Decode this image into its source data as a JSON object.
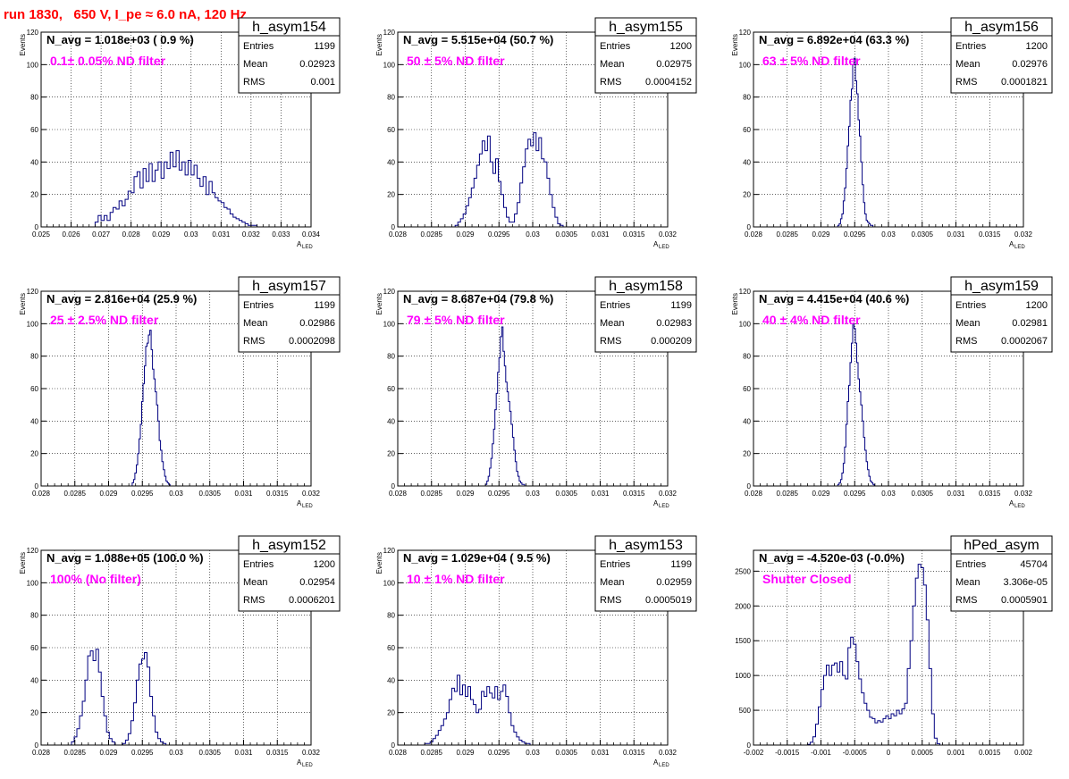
{
  "title": "run 1830,   650 V, I_pe ≈ 6.0 nA, 120 Hz",
  "colors": {
    "title": "#ff0000",
    "annotation": "#ff00ff",
    "histogram": "#000080",
    "grid": "#000000"
  },
  "chart_data": [
    {
      "type": "histogram",
      "name": "h_asym154",
      "stats": [
        {
          "label": "Entries",
          "value": "1199"
        },
        {
          "label": "Mean",
          "value": "0.02923"
        },
        {
          "label": "RMS",
          "value": "0.001"
        }
      ],
      "navg": "N_avg = 1.018e+03 ( 0.9 %)",
      "annotation": "0.1± 0.05% ND filter",
      "ylabel": "Events",
      "xlabel": "A",
      "xlabel_sub": "LED",
      "xlim": [
        0.025,
        0.034
      ],
      "ylim": [
        0,
        120
      ],
      "xticks": [
        "0.025",
        "0.026",
        "0.027",
        "0.028",
        "0.029",
        "0.03",
        "0.031",
        "0.032",
        "0.033",
        "0.034"
      ],
      "yticks": [
        "0",
        "20",
        "40",
        "60",
        "80",
        "100",
        "120"
      ],
      "bin_start": 0.0268,
      "bin_width": 0.0001,
      "counts": [
        3,
        7,
        4,
        7,
        4,
        9,
        12,
        11,
        16,
        13,
        17,
        22,
        21,
        31,
        34,
        24,
        36,
        28,
        39,
        28,
        35,
        40,
        30,
        40,
        36,
        46,
        37,
        47,
        35,
        40,
        32,
        41,
        32,
        38,
        30,
        25,
        31,
        20,
        28,
        21,
        18,
        16,
        15,
        12,
        11,
        8,
        6,
        5,
        4,
        3,
        2,
        1,
        1,
        1,
        0,
        0,
        0,
        0,
        0,
        0
      ]
    },
    {
      "type": "histogram",
      "name": "h_asym155",
      "stats": [
        {
          "label": "Entries",
          "value": "1200"
        },
        {
          "label": "Mean",
          "value": "0.02975"
        },
        {
          "label": "RMS",
          "value": "0.0004152"
        }
      ],
      "navg": "N_avg = 5.515e+04 (50.7 %)",
      "annotation": "50 ± 5% ND filter",
      "ylabel": "Events",
      "xlabel": "A",
      "xlabel_sub": "LED",
      "xlim": [
        0.028,
        0.032
      ],
      "ylim": [
        0,
        120
      ],
      "xticks": [
        "0.028",
        "0.0285",
        "0.029",
        "0.0295",
        "0.03",
        "0.0305",
        "0.031",
        "0.0315",
        "0.032"
      ],
      "yticks": [
        "0",
        "20",
        "40",
        "60",
        "80",
        "100",
        "120"
      ],
      "bin_start": 0.02885,
      "bin_width": 4e-05,
      "counts": [
        1,
        3,
        5,
        8,
        13,
        18,
        24,
        30,
        38,
        45,
        53,
        47,
        56,
        40,
        33,
        42,
        28,
        20,
        12,
        6,
        3,
        3,
        8,
        15,
        27,
        37,
        48,
        54,
        50,
        58,
        47,
        55,
        42,
        40,
        30,
        20,
        12,
        6,
        2,
        1
      ]
    },
    {
      "type": "histogram",
      "name": "h_asym156",
      "stats": [
        {
          "label": "Entries",
          "value": "1200"
        },
        {
          "label": "Mean",
          "value": "0.02976"
        },
        {
          "label": "RMS",
          "value": "0.0001821"
        }
      ],
      "navg": "N_avg = 6.892e+04 (63.3 %)",
      "annotation": "63 ± 5% ND filter",
      "ylabel": "Events",
      "xlabel": "A",
      "xlabel_sub": "LED",
      "xlim": [
        0.028,
        0.032
      ],
      "ylim": [
        0,
        120
      ],
      "xticks": [
        "0.028",
        "0.0285",
        "0.029",
        "0.0295",
        "0.03",
        "0.0305",
        "0.031",
        "0.0315",
        "0.032"
      ],
      "yticks": [
        "0",
        "20",
        "40",
        "60",
        "80",
        "100",
        "120"
      ],
      "bin_start": 0.02925,
      "bin_width": 2e-05,
      "counts": [
        1,
        2,
        5,
        8,
        16,
        24,
        36,
        50,
        62,
        78,
        85,
        100,
        104,
        90,
        82,
        66,
        56,
        40,
        26,
        15,
        8,
        4,
        3,
        2,
        1,
        1,
        0,
        0,
        0,
        0
      ]
    },
    {
      "type": "histogram",
      "name": "h_asym157",
      "stats": [
        {
          "label": "Entries",
          "value": "1199"
        },
        {
          "label": "Mean",
          "value": "0.02986"
        },
        {
          "label": "RMS",
          "value": "0.0002098"
        }
      ],
      "navg": "N_avg = 2.816e+04 (25.9 %)",
      "annotation": "25 ± 2.5% ND filter",
      "ylabel": "Events",
      "xlabel": "A",
      "xlabel_sub": "LED",
      "xlim": [
        0.028,
        0.032
      ],
      "ylim": [
        0,
        120
      ],
      "xticks": [
        "0.028",
        "0.0285",
        "0.029",
        "0.0295",
        "0.03",
        "0.0305",
        "0.031",
        "0.0315",
        "0.032"
      ],
      "yticks": [
        "0",
        "20",
        "40",
        "60",
        "80",
        "100",
        "120"
      ],
      "bin_start": 0.02935,
      "bin_width": 2e-05,
      "counts": [
        2,
        4,
        8,
        13,
        20,
        29,
        38,
        52,
        63,
        74,
        86,
        88,
        93,
        96,
        84,
        72,
        66,
        58,
        50,
        40,
        28,
        22,
        15,
        10,
        6,
        3,
        2,
        1,
        0,
        0
      ]
    },
    {
      "type": "histogram",
      "name": "h_asym158",
      "stats": [
        {
          "label": "Entries",
          "value": "1199"
        },
        {
          "label": "Mean",
          "value": "0.02983"
        },
        {
          "label": "RMS",
          "value": "0.000209"
        }
      ],
      "navg": "N_avg = 8.687e+04 (79.8 %)",
      "annotation": "79 ± 5% ND filter",
      "ylabel": "Events",
      "xlabel": "A",
      "xlabel_sub": "LED",
      "xlim": [
        0.028,
        0.032
      ],
      "ylim": [
        0,
        120
      ],
      "xticks": [
        "0.028",
        "0.0285",
        "0.029",
        "0.0295",
        "0.03",
        "0.0305",
        "0.031",
        "0.0315",
        "0.032"
      ],
      "yticks": [
        "0",
        "20",
        "40",
        "60",
        "80",
        "100",
        "120"
      ],
      "bin_start": 0.0293,
      "bin_width": 2e-05,
      "counts": [
        1,
        3,
        6,
        11,
        17,
        26,
        35,
        47,
        57,
        70,
        79,
        92,
        98,
        83,
        74,
        64,
        58,
        52,
        46,
        38,
        30,
        22,
        15,
        9,
        6,
        3,
        2,
        1,
        1,
        0
      ]
    },
    {
      "type": "histogram",
      "name": "h_asym159",
      "stats": [
        {
          "label": "Entries",
          "value": "1200"
        },
        {
          "label": "Mean",
          "value": "0.02981"
        },
        {
          "label": "RMS",
          "value": "0.0002067"
        }
      ],
      "navg": "N_avg = 4.415e+04 (40.6 %)",
      "annotation": "40 ± 4% ND filter",
      "ylabel": "Events",
      "xlabel": "A",
      "xlabel_sub": "LED",
      "xlim": [
        0.028,
        0.032
      ],
      "ylim": [
        0,
        120
      ],
      "xticks": [
        "0.028",
        "0.0285",
        "0.029",
        "0.0295",
        "0.03",
        "0.0305",
        "0.031",
        "0.0315",
        "0.032"
      ],
      "yticks": [
        "0",
        "20",
        "40",
        "60",
        "80",
        "100",
        "120"
      ],
      "bin_start": 0.02925,
      "bin_width": 2e-05,
      "counts": [
        1,
        2,
        4,
        8,
        14,
        24,
        38,
        52,
        62,
        76,
        88,
        100,
        97,
        88,
        76,
        66,
        58,
        50,
        40,
        30,
        22,
        15,
        10,
        6,
        3,
        2,
        1,
        0,
        0,
        0
      ]
    },
    {
      "type": "histogram",
      "name": "h_asym152",
      "stats": [
        {
          "label": "Entries",
          "value": "1200"
        },
        {
          "label": "Mean",
          "value": "0.02954"
        },
        {
          "label": "RMS",
          "value": "0.0006201"
        }
      ],
      "navg": "N_avg = 1.088e+05 (100.0 %)",
      "annotation": "100% (No filter)",
      "ylabel": "Events",
      "xlabel": "A",
      "xlabel_sub": "LED",
      "xlim": [
        0.028,
        0.032
      ],
      "ylim": [
        0,
        120
      ],
      "xticks": [
        "0.028",
        "0.0285",
        "0.029",
        "0.0295",
        "0.03",
        "0.0305",
        "0.031",
        "0.0315",
        "0.032"
      ],
      "yticks": [
        "0",
        "20",
        "40",
        "60",
        "80",
        "100",
        "120"
      ],
      "bin_start": 0.02845,
      "bin_width": 4e-05,
      "counts": [
        2,
        5,
        10,
        18,
        27,
        40,
        55,
        58,
        52,
        59,
        45,
        30,
        18,
        8,
        4,
        2,
        0,
        0,
        0,
        1,
        3,
        7,
        15,
        26,
        40,
        50,
        53,
        57,
        48,
        30,
        18,
        8,
        4,
        2,
        1,
        0
      ]
    },
    {
      "type": "histogram",
      "name": "h_asym153",
      "stats": [
        {
          "label": "Entries",
          "value": "1199"
        },
        {
          "label": "Mean",
          "value": "0.02959"
        },
        {
          "label": "RMS",
          "value": "0.0005019"
        }
      ],
      "navg": "N_avg = 1.029e+04 ( 9.5 %)",
      "annotation": "10 ± 1% ND filter",
      "ylabel": "Events",
      "xlabel": "A",
      "xlabel_sub": "LED",
      "xlim": [
        0.028,
        0.032
      ],
      "ylim": [
        0,
        120
      ],
      "xticks": [
        "0.028",
        "0.0285",
        "0.029",
        "0.0295",
        "0.03",
        "0.0305",
        "0.031",
        "0.0315",
        "0.032"
      ],
      "yticks": [
        "0",
        "20",
        "40",
        "60",
        "80",
        "100",
        "120"
      ],
      "bin_start": 0.0284,
      "bin_width": 4e-05,
      "counts": [
        1,
        1,
        2,
        4,
        6,
        9,
        12,
        16,
        20,
        28,
        35,
        33,
        43,
        31,
        37,
        30,
        36,
        28,
        25,
        20,
        22,
        33,
        30,
        36,
        32,
        29,
        36,
        28,
        33,
        37,
        30,
        20,
        12,
        8,
        5,
        3,
        2,
        1,
        1,
        0,
        0,
        0
      ]
    },
    {
      "type": "histogram",
      "name": "hPed_asym",
      "stats": [
        {
          "label": "Entries",
          "value": "45704"
        },
        {
          "label": "Mean",
          "value": "3.306e-05"
        },
        {
          "label": "RMS",
          "value": "0.0005901"
        }
      ],
      "navg": "N_avg = -4.520e-03 (-0.0%)",
      "annotation": "Shutter Closed",
      "ylabel": "",
      "xlabel": "",
      "xlabel_sub": "",
      "xlim": [
        -0.002,
        0.002
      ],
      "ylim": [
        0,
        2800
      ],
      "xticks": [
        "-0.002",
        "-0.0015",
        "-0.001",
        "-0.0005",
        "0",
        "0.0005",
        "0.001",
        "0.0015",
        "0.002"
      ],
      "yticks": [
        "0",
        "500",
        "1000",
        "1500",
        "2000",
        "2500"
      ],
      "bin_start": -0.0012,
      "bin_width": 4e-05,
      "counts": [
        10,
        40,
        120,
        300,
        550,
        800,
        1000,
        1150,
        1000,
        1150,
        1180,
        1050,
        1200,
        1000,
        950,
        1400,
        1550,
        1450,
        1200,
        950,
        750,
        600,
        500,
        400,
        380,
        320,
        350,
        330,
        380,
        420,
        380,
        450,
        420,
        500,
        450,
        520,
        600,
        1100,
        1500,
        2000,
        2400,
        2600,
        2550,
        2300,
        1800,
        1100,
        450,
        100,
        20,
        0
      ]
    }
  ]
}
